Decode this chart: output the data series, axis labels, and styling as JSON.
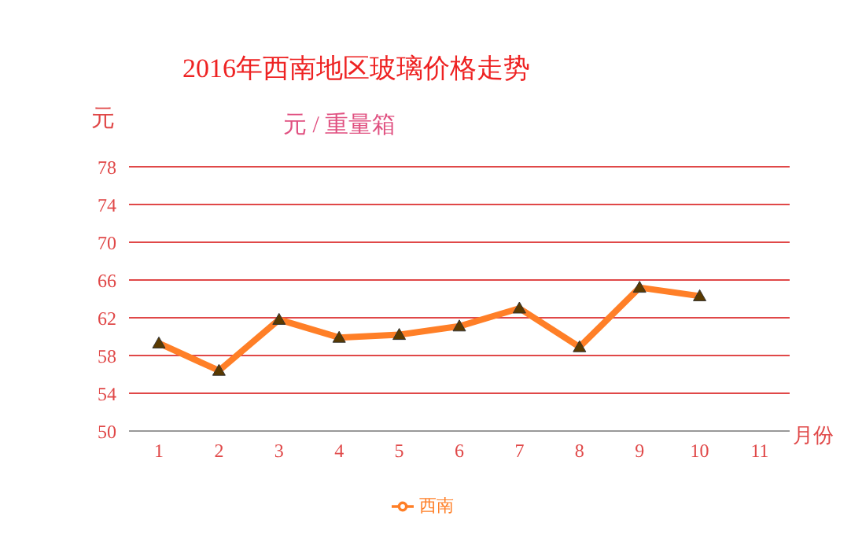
{
  "chart_data": {
    "type": "line",
    "title": "2016年西南地区玻璃价格走势",
    "subtitle": "元 / 重量箱",
    "ylabel": "元",
    "xlabel": "月份",
    "categories": [
      "1",
      "2",
      "3",
      "4",
      "5",
      "6",
      "7",
      "8",
      "9",
      "10",
      "11"
    ],
    "series": [
      {
        "name": "西南",
        "color": "#ff7f27",
        "values": [
          59.3,
          56.4,
          61.8,
          59.9,
          60.2,
          61.1,
          63.0,
          58.9,
          65.2,
          64.3,
          null
        ]
      }
    ],
    "ylim": [
      50,
      78
    ],
    "yticks": [
      50,
      54,
      58,
      62,
      66,
      70,
      74,
      78
    ],
    "grid": "y",
    "legend": "bottom",
    "marker": "triangle",
    "line_style": "solid"
  }
}
